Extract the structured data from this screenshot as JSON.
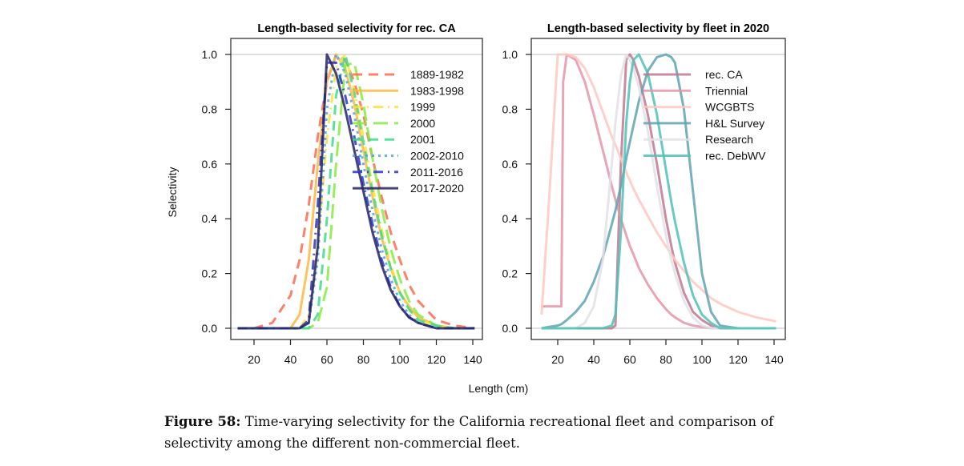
{
  "chart_data": [
    {
      "type": "line",
      "title": "Length-based selectivity for rec. CA",
      "xlabel": "Length (cm)",
      "ylabel": "Selectivity",
      "xlim": [
        5,
        145
      ],
      "ylim": [
        0,
        1
      ],
      "xticks": [
        20,
        40,
        60,
        80,
        100,
        120,
        140
      ],
      "yticks": [
        "0.0",
        "0.2",
        "0.4",
        "0.6",
        "0.8",
        "1.0"
      ],
      "grid": "horizontal lines at 0 and 1",
      "legend": "top-right",
      "x": [
        11,
        20,
        30,
        40,
        45,
        50,
        55,
        60,
        65,
        70,
        75,
        80,
        85,
        90,
        95,
        100,
        105,
        110,
        120,
        130,
        141
      ],
      "series": [
        {
          "name": "1889-1982",
          "color": "#FF6A4D",
          "dash": "dashed",
          "values": [
            0,
            0,
            0.02,
            0.12,
            0.25,
            0.45,
            0.7,
            0.9,
            1,
            0.98,
            0.9,
            0.78,
            0.62,
            0.48,
            0.35,
            0.25,
            0.16,
            0.1,
            0.03,
            0.01,
            0
          ]
        },
        {
          "name": "1983-1998",
          "color": "#FDB940",
          "dash": "solid",
          "values": [
            0,
            0,
            0,
            0,
            0.05,
            0.25,
            0.6,
            0.9,
            1,
            0.95,
            0.82,
            0.65,
            0.48,
            0.33,
            0.22,
            0.13,
            0.08,
            0.04,
            0.01,
            0,
            0
          ]
        },
        {
          "name": "1999",
          "color": "#FFE135",
          "dash": "dashdot",
          "values": [
            0,
            0,
            0,
            0,
            0,
            0.05,
            0.3,
            0.7,
            0.95,
            1,
            0.87,
            0.7,
            0.52,
            0.36,
            0.23,
            0.13,
            0.07,
            0.03,
            0.01,
            0,
            0
          ]
        },
        {
          "name": "2000",
          "color": "#86EC3E",
          "dash": "longdash",
          "values": [
            0,
            0,
            0,
            0,
            0,
            0,
            0.02,
            0.15,
            0.6,
            0.96,
            0.97,
            0.82,
            0.62,
            0.44,
            0.29,
            0.18,
            0.1,
            0.05,
            0.01,
            0,
            0
          ]
        },
        {
          "name": "2001",
          "color": "#3EDB8C",
          "dash": "dashed",
          "values": [
            0,
            0,
            0,
            0,
            0,
            0,
            0.05,
            0.4,
            0.85,
            1,
            0.86,
            0.68,
            0.5,
            0.34,
            0.22,
            0.13,
            0.07,
            0.03,
            0.01,
            0,
            0
          ]
        },
        {
          "name": "2002-2010",
          "color": "#4AA3F0",
          "dash": "dotted",
          "values": [
            0,
            0,
            0,
            0,
            0,
            0.02,
            0.25,
            0.8,
            1,
            0.93,
            0.78,
            0.6,
            0.43,
            0.29,
            0.18,
            0.1,
            0.05,
            0.02,
            0,
            0,
            0
          ]
        },
        {
          "name": "2011-2016",
          "color": "#2E35C8",
          "dash": "dashdot",
          "values": [
            0,
            0,
            0,
            0,
            0,
            0.03,
            0.45,
            0.97,
            0.97,
            0.85,
            0.7,
            0.53,
            0.38,
            0.25,
            0.15,
            0.08,
            0.04,
            0.02,
            0,
            0,
            0
          ]
        },
        {
          "name": "2017-2020",
          "color": "#232566",
          "dash": "solid",
          "values": [
            0,
            0,
            0,
            0,
            0,
            0.02,
            0.3,
            1,
            0.93,
            0.8,
            0.65,
            0.5,
            0.35,
            0.23,
            0.14,
            0.08,
            0.04,
            0.02,
            0,
            0,
            0
          ]
        }
      ]
    },
    {
      "type": "line",
      "title": "Length-based selectivity by fleet in 2020",
      "xlabel": "Length (cm)",
      "xlim": [
        5,
        145
      ],
      "ylim": [
        0,
        1
      ],
      "xticks": [
        20,
        40,
        60,
        80,
        100,
        120,
        140
      ],
      "yticks": [
        "0.0",
        "0.2",
        "0.4",
        "0.6",
        "0.8",
        "1.0"
      ],
      "grid": "horizontal lines at 0 and 1",
      "legend": "top-right",
      "x": [
        11,
        15,
        20,
        22,
        23,
        25,
        30,
        35,
        40,
        45,
        50,
        52,
        55,
        58,
        60,
        62,
        65,
        70,
        75,
        80,
        83,
        85,
        90,
        95,
        100,
        105,
        110,
        120,
        130,
        141
      ],
      "series": [
        {
          "name": "rec. CA",
          "color": "#C07890",
          "values": [
            0,
            0,
            0,
            0,
            0,
            0,
            0,
            0,
            0,
            0,
            0,
            0.01,
            0.6,
            0.98,
            1,
            0.98,
            0.92,
            0.78,
            0.6,
            0.4,
            0.3,
            0.24,
            0.13,
            0.06,
            0.03,
            0.01,
            0,
            0,
            0,
            0
          ]
        },
        {
          "name": "Triennial",
          "color": "#E595A8",
          "values": [
            0.08,
            0.08,
            0.08,
            0.08,
            0.9,
            1,
            0.98,
            0.9,
            0.78,
            0.65,
            0.52,
            0.47,
            0.4,
            0.34,
            0.3,
            0.27,
            0.22,
            0.16,
            0.11,
            0.07,
            0.05,
            0.04,
            0.02,
            0.01,
            0.005,
            0,
            0,
            0,
            0,
            0
          ]
        },
        {
          "name": "WCGBTS",
          "color": "#FFC8C0",
          "values": [
            0.05,
            0.45,
            1,
            1,
            1,
            1,
            0.99,
            0.95,
            0.88,
            0.79,
            0.7,
            0.67,
            0.62,
            0.57,
            0.54,
            0.51,
            0.47,
            0.41,
            0.35,
            0.3,
            0.27,
            0.25,
            0.21,
            0.17,
            0.14,
            0.11,
            0.09,
            0.06,
            0.04,
            0.025
          ]
        },
        {
          "name": "H&L Survey",
          "color": "#5FA3B0",
          "values": [
            0,
            0.005,
            0.01,
            0.015,
            0.02,
            0.03,
            0.06,
            0.1,
            0.17,
            0.26,
            0.38,
            0.43,
            0.52,
            0.62,
            0.68,
            0.74,
            0.83,
            0.94,
            0.99,
            1,
            0.99,
            0.97,
            0.8,
            0.5,
            0.2,
            0.06,
            0.01,
            0,
            0,
            0
          ]
        },
        {
          "name": "Research",
          "color": "#E0E0E6",
          "values": [
            0,
            0,
            0,
            0,
            0,
            0,
            0,
            0.02,
            0.08,
            0.25,
            0.6,
            0.75,
            0.92,
            1,
            0.98,
            0.95,
            0.88,
            0.72,
            0.52,
            0.34,
            0.25,
            0.2,
            0.1,
            0.04,
            0.01,
            0,
            0,
            0,
            0,
            0
          ]
        },
        {
          "name": "rec. DebWV",
          "color": "#4FC1B8",
          "values": [
            0,
            0,
            0,
            0,
            0,
            0,
            0,
            0,
            0,
            0,
            0.01,
            0.05,
            0.35,
            0.75,
            0.9,
            0.98,
            1,
            0.93,
            0.78,
            0.58,
            0.46,
            0.39,
            0.24,
            0.12,
            0.05,
            0.02,
            0,
            0,
            0,
            0
          ]
        }
      ]
    }
  ],
  "shared_xlabel": "Length (cm)",
  "caption": {
    "label": "Figure 58:",
    "text": "Time-varying selectivity for the California recreational fleet and comparison of selectivity among the different non-commercial fleet."
  }
}
